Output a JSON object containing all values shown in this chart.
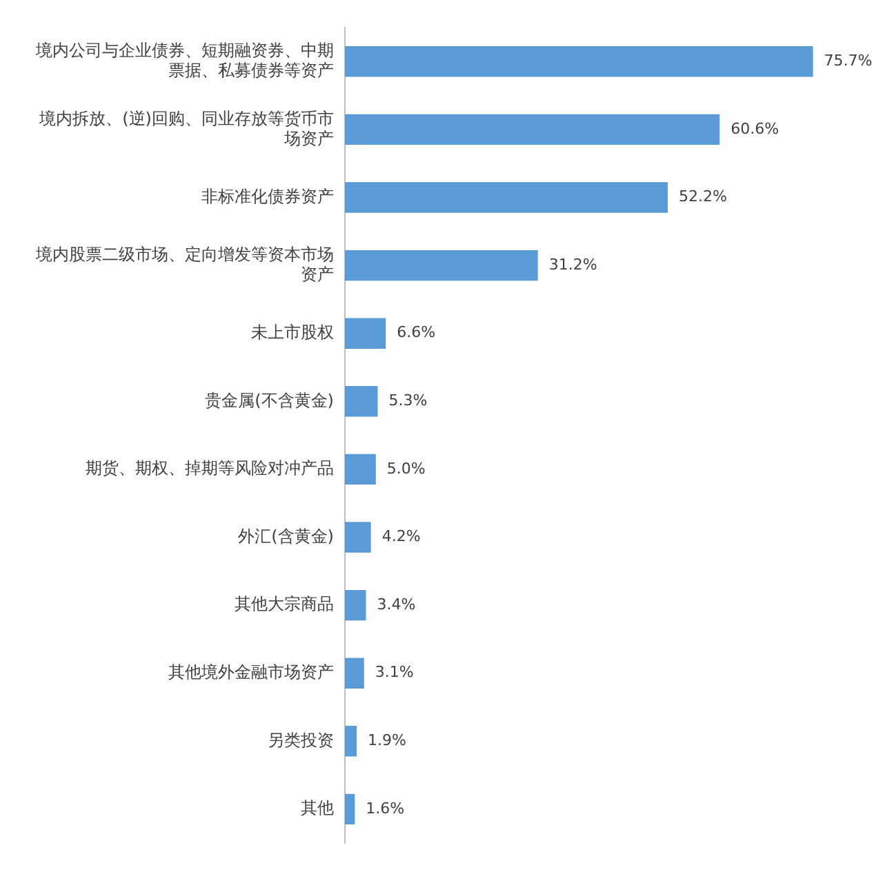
{
  "chart_data": {
    "type": "bar",
    "orientation": "horizontal",
    "categories": [
      "境内公司与企业债券、短期融资券、中期票据、私募债券等资产",
      "境内拆放、(逆)回购、同业存放等货币市场资产",
      "非标准化债券资产",
      "境内股票二级市场、定向增发等资本市场资产",
      "未上市股权",
      "贵金属(不含黄金)",
      "期货、期权、掉期等风险对冲产品",
      "外汇(含黄金)",
      "其他大宗商品",
      "其他境外金融市场资产",
      "另类投资",
      "其他"
    ],
    "values": [
      75.7,
      60.6,
      52.2,
      31.2,
      6.6,
      5.3,
      5.0,
      4.2,
      3.4,
      3.1,
      1.9,
      1.6
    ],
    "value_labels": [
      "75.7%",
      "60.6%",
      "52.2%",
      "31.2%",
      "6.6%",
      "5.3%",
      "5.0%",
      "4.2%",
      "3.4%",
      "3.1%",
      "1.9%",
      "1.6%"
    ],
    "color": "#5b9bd5",
    "grid": false,
    "legend": false,
    "tick_labels": "y"
  }
}
